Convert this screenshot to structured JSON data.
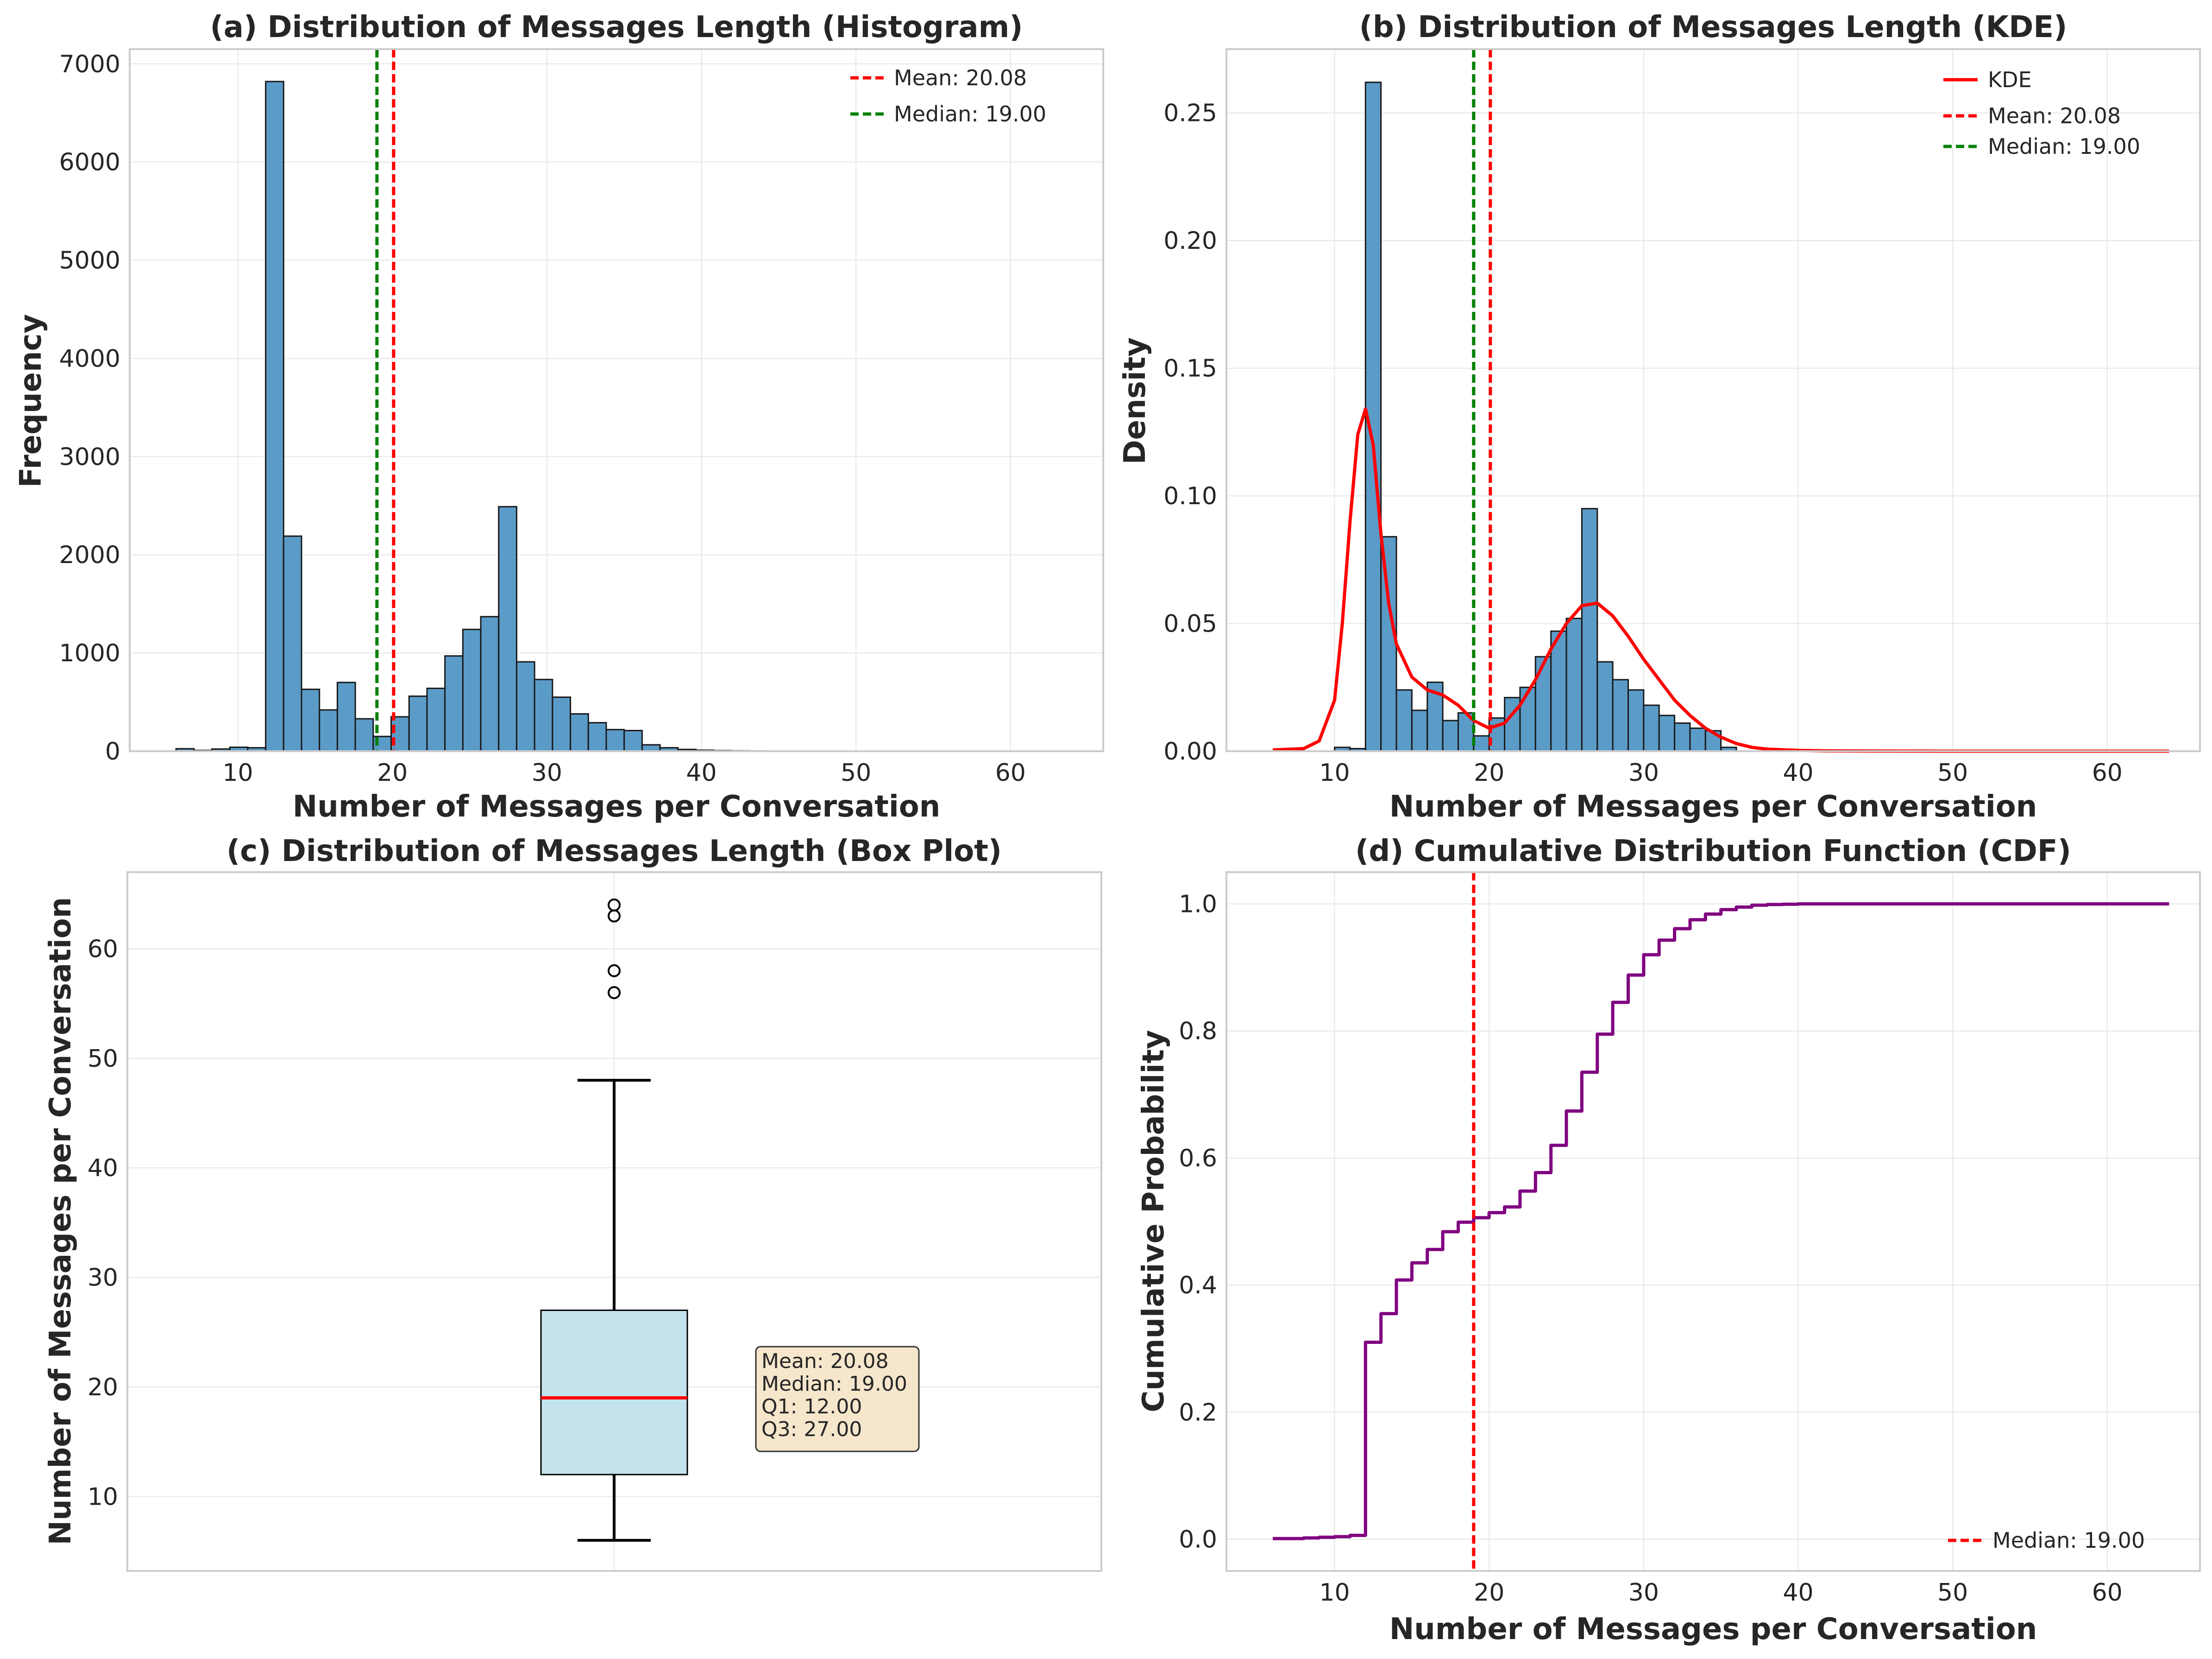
{
  "colors": {
    "bar_fill": "#5b9bc8",
    "bar_edge": "#1a1a1a",
    "mean": "#ff0000",
    "median": "#008000",
    "kde": "#ff0000",
    "box_fill": "#c5e3ec",
    "box_median": "#ff0000",
    "cdf": "#800080",
    "stats_box_fill": "#f5e6cc"
  },
  "stats": {
    "mean": 20.08,
    "median": 19.0,
    "q1": 12.0,
    "q3": 27.0
  },
  "chart_data": [
    {
      "id": "a",
      "type": "bar",
      "title": "(a) Distribution of Messages Length (Histogram)",
      "xlabel": "Number of Messages per Conversation",
      "ylabel": "Frequency",
      "xlim": [
        3,
        66
      ],
      "ylim": [
        0,
        7150
      ],
      "xticks": [
        10,
        20,
        30,
        40,
        50,
        60
      ],
      "yticks": [
        0,
        1000,
        2000,
        3000,
        4000,
        5000,
        6000,
        7000
      ],
      "bin_edges": [
        6,
        7.16,
        8.32,
        9.48,
        10.64,
        11.8,
        12.96,
        14.12,
        15.28,
        16.44,
        17.6,
        18.76,
        19.92,
        21.08,
        22.24,
        23.4,
        24.56,
        25.72,
        26.88,
        28.04,
        29.2,
        30.36,
        31.52,
        32.68,
        33.84,
        35,
        36.16,
        37.32,
        38.48,
        39.64,
        40.8,
        41.96,
        43.12,
        44.28,
        45.44,
        46.6,
        47.76,
        48.92,
        50.08,
        51.24,
        52.4,
        53.56,
        54.72,
        55.88,
        57.04,
        58.2,
        59.36,
        60.52,
        61.68,
        62.84,
        64
      ],
      "counts": [
        25,
        8,
        22,
        40,
        35,
        6820,
        2190,
        630,
        420,
        700,
        330,
        150,
        350,
        560,
        640,
        970,
        1240,
        1370,
        2490,
        910,
        730,
        550,
        380,
        290,
        220,
        210,
        65,
        35,
        18,
        10,
        6,
        4,
        3,
        2,
        0,
        1,
        0,
        0,
        0,
        0,
        0,
        0,
        0,
        1,
        1,
        0,
        0,
        0,
        0,
        1
      ],
      "legend": [
        {
          "label": "Mean: 20.08",
          "style": "dashed",
          "color": "#ff0000"
        },
        {
          "label": "Median: 19.00",
          "style": "dashed",
          "color": "#008000"
        }
      ]
    },
    {
      "id": "b",
      "type": "bar",
      "title": "(b) Distribution of Messages Length (KDE)",
      "xlabel": "Number of Messages per Conversation",
      "ylabel": "Density",
      "xlim": [
        3,
        66
      ],
      "ylim": [
        0,
        0.275
      ],
      "xticks": [
        10,
        20,
        30,
        40,
        50,
        60
      ],
      "yticks": [
        0.0,
        0.05,
        0.1,
        0.15,
        0.2,
        0.25
      ],
      "ytick_labels": [
        "0.00",
        "0.05",
        "0.10",
        "0.15",
        "0.20",
        "0.25"
      ],
      "bin_edges": [
        10,
        11,
        12,
        13,
        14,
        15,
        16,
        17,
        18,
        19,
        20,
        21,
        22,
        23,
        24,
        25,
        26,
        27,
        28,
        29,
        30,
        31,
        32,
        33,
        34,
        35,
        36
      ],
      "density": [
        0.0015,
        0.001,
        0.262,
        0.084,
        0.024,
        0.016,
        0.027,
        0.012,
        0.015,
        0.006,
        0.013,
        0.021,
        0.025,
        0.037,
        0.047,
        0.052,
        0.095,
        0.035,
        0.028,
        0.024,
        0.018,
        0.014,
        0.011,
        0.009,
        0.008,
        0.0015
      ],
      "kde_x": [
        6,
        8,
        9,
        10,
        10.5,
        11,
        11.5,
        12,
        12.5,
        13,
        13.5,
        14,
        15,
        16,
        17,
        18,
        19,
        20,
        21,
        22,
        23,
        24,
        25,
        26,
        27,
        28,
        29,
        30,
        31,
        32,
        33,
        34,
        35,
        36,
        37,
        38,
        40,
        42,
        45,
        50,
        55,
        60,
        64
      ],
      "kde_y": [
        0.0005,
        0.001,
        0.004,
        0.02,
        0.05,
        0.09,
        0.124,
        0.134,
        0.12,
        0.085,
        0.058,
        0.042,
        0.029,
        0.024,
        0.022,
        0.018,
        0.012,
        0.009,
        0.011,
        0.018,
        0.028,
        0.04,
        0.05,
        0.057,
        0.058,
        0.053,
        0.045,
        0.036,
        0.028,
        0.02,
        0.014,
        0.009,
        0.0055,
        0.003,
        0.0015,
        0.0008,
        0.0003,
        0.0001,
        5e-05,
        0,
        0,
        0,
        0
      ],
      "legend": [
        {
          "label": "KDE",
          "style": "solid",
          "color": "#ff0000"
        },
        {
          "label": "Mean: 20.08",
          "style": "dashed",
          "color": "#ff0000"
        },
        {
          "label": "Median: 19.00",
          "style": "dashed",
          "color": "#008000"
        }
      ]
    },
    {
      "id": "c",
      "type": "box",
      "title": "(c) Distribution of Messages Length (Box Plot)",
      "ylabel": "Number of Messages per Conversation",
      "ylim": [
        3.2,
        67
      ],
      "yticks": [
        10,
        20,
        30,
        40,
        50,
        60
      ],
      "whisker_low": 6,
      "q1": 12,
      "median": 19,
      "q3": 27,
      "whisker_high": 48,
      "outliers": [
        56,
        58,
        63,
        64
      ],
      "stats_lines": [
        "Mean: 20.08",
        "Median: 19.00",
        "Q1: 12.00",
        "Q3: 27.00"
      ]
    },
    {
      "id": "d",
      "type": "line",
      "title": "(d) Cumulative Distribution Function (CDF)",
      "xlabel": "Number of Messages per Conversation",
      "ylabel": "Cumulative Probability",
      "xlim": [
        3,
        66
      ],
      "ylim": [
        -0.05,
        1.05
      ],
      "xticks": [
        10,
        20,
        30,
        40,
        50,
        60
      ],
      "yticks": [
        0.0,
        0.2,
        0.4,
        0.6,
        0.8,
        1.0
      ],
      "ytick_labels": [
        "0.0",
        "0.2",
        "0.4",
        "0.6",
        "0.8",
        "1.0"
      ],
      "step_x": [
        6,
        7,
        8,
        9,
        10,
        11,
        12,
        13,
        14,
        15,
        16,
        17,
        18,
        19,
        20,
        21,
        22,
        23,
        24,
        25,
        26,
        27,
        28,
        29,
        30,
        31,
        32,
        33,
        34,
        35,
        36,
        37,
        38,
        39,
        40,
        45,
        50,
        64
      ],
      "step_y": [
        0.001,
        0.001,
        0.002,
        0.003,
        0.004,
        0.006,
        0.31,
        0.355,
        0.408,
        0.435,
        0.456,
        0.484,
        0.499,
        0.506,
        0.514,
        0.523,
        0.548,
        0.577,
        0.62,
        0.674,
        0.735,
        0.795,
        0.845,
        0.888,
        0.92,
        0.943,
        0.961,
        0.975,
        0.984,
        0.991,
        0.995,
        0.998,
        0.999,
        0.9995,
        1.0,
        1.0,
        1.0,
        1.0
      ],
      "legend": [
        {
          "label": "Median: 19.00",
          "style": "dashed",
          "color": "#ff0000"
        }
      ]
    }
  ]
}
